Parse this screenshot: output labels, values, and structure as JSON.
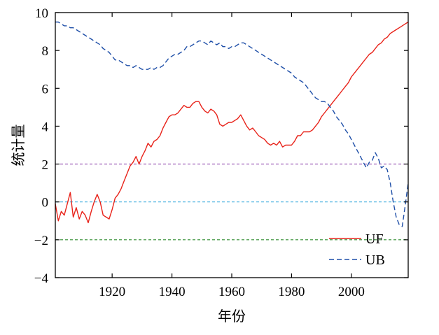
{
  "chart_data": {
    "type": "line",
    "xlabel": "年份",
    "ylabel": "统计量",
    "xlim": [
      1901,
      2019
    ],
    "ylim": [
      -4,
      10
    ],
    "xticks": [
      1920,
      1940,
      1960,
      1980,
      2000
    ],
    "yticks": [
      10,
      8,
      6,
      4,
      2,
      0,
      -2,
      -4
    ],
    "ytick_labels": [
      "10",
      "8",
      "6",
      "4",
      "2",
      "0",
      "−2",
      "−4"
    ],
    "grid": false,
    "legend": "bottom-right",
    "reference_lines": [
      {
        "y": 2,
        "color": "#8e44ad",
        "style": "dashed"
      },
      {
        "y": 0,
        "color": "#4ab3e0",
        "style": "dashed"
      },
      {
        "y": -2,
        "color": "#2e8b2e",
        "style": "dashed"
      }
    ],
    "series": [
      {
        "name": "UF",
        "color": "#e8231a",
        "style": "solid",
        "points": [
          [
            1901,
            -0.1
          ],
          [
            1902,
            -1.0
          ],
          [
            1903,
            -0.5
          ],
          [
            1904,
            -0.7
          ],
          [
            1905,
            -0.1
          ],
          [
            1906,
            0.5
          ],
          [
            1907,
            -0.8
          ],
          [
            1908,
            -0.3
          ],
          [
            1909,
            -0.9
          ],
          [
            1910,
            -0.5
          ],
          [
            1911,
            -0.7
          ],
          [
            1912,
            -1.1
          ],
          [
            1913,
            -0.5
          ],
          [
            1914,
            0.0
          ],
          [
            1915,
            0.4
          ],
          [
            1916,
            0.0
          ],
          [
            1917,
            -0.7
          ],
          [
            1918,
            -0.8
          ],
          [
            1919,
            -0.9
          ],
          [
            1920,
            -0.4
          ],
          [
            1921,
            0.2
          ],
          [
            1922,
            0.4
          ],
          [
            1923,
            0.7
          ],
          [
            1924,
            1.1
          ],
          [
            1925,
            1.5
          ],
          [
            1926,
            1.9
          ],
          [
            1927,
            2.1
          ],
          [
            1928,
            2.4
          ],
          [
            1929,
            2.0
          ],
          [
            1930,
            2.4
          ],
          [
            1931,
            2.7
          ],
          [
            1932,
            3.1
          ],
          [
            1933,
            2.9
          ],
          [
            1934,
            3.2
          ],
          [
            1935,
            3.3
          ],
          [
            1936,
            3.5
          ],
          [
            1937,
            3.9
          ],
          [
            1938,
            4.2
          ],
          [
            1939,
            4.5
          ],
          [
            1940,
            4.6
          ],
          [
            1941,
            4.6
          ],
          [
            1942,
            4.7
          ],
          [
            1943,
            4.9
          ],
          [
            1944,
            5.1
          ],
          [
            1945,
            5.0
          ],
          [
            1946,
            5.0
          ],
          [
            1947,
            5.2
          ],
          [
            1948,
            5.3
          ],
          [
            1949,
            5.3
          ],
          [
            1950,
            5.0
          ],
          [
            1951,
            4.8
          ],
          [
            1952,
            4.7
          ],
          [
            1953,
            4.9
          ],
          [
            1954,
            4.8
          ],
          [
            1955,
            4.6
          ],
          [
            1956,
            4.1
          ],
          [
            1957,
            4.0
          ],
          [
            1958,
            4.1
          ],
          [
            1959,
            4.2
          ],
          [
            1960,
            4.2
          ],
          [
            1961,
            4.3
          ],
          [
            1962,
            4.4
          ],
          [
            1963,
            4.6
          ],
          [
            1964,
            4.3
          ],
          [
            1965,
            4.0
          ],
          [
            1966,
            3.8
          ],
          [
            1967,
            3.9
          ],
          [
            1968,
            3.7
          ],
          [
            1969,
            3.5
          ],
          [
            1970,
            3.4
          ],
          [
            1971,
            3.3
          ],
          [
            1972,
            3.1
          ],
          [
            1973,
            3.0
          ],
          [
            1974,
            3.1
          ],
          [
            1975,
            3.0
          ],
          [
            1976,
            3.2
          ],
          [
            1977,
            2.9
          ],
          [
            1978,
            3.0
          ],
          [
            1979,
            3.0
          ],
          [
            1980,
            3.0
          ],
          [
            1981,
            3.2
          ],
          [
            1982,
            3.5
          ],
          [
            1983,
            3.5
          ],
          [
            1984,
            3.7
          ],
          [
            1985,
            3.7
          ],
          [
            1986,
            3.7
          ],
          [
            1987,
            3.8
          ],
          [
            1988,
            4.0
          ],
          [
            1989,
            4.2
          ],
          [
            1990,
            4.5
          ],
          [
            1991,
            4.7
          ],
          [
            1992,
            4.9
          ],
          [
            1993,
            5.1
          ],
          [
            1994,
            5.3
          ],
          [
            1995,
            5.5
          ],
          [
            1996,
            5.7
          ],
          [
            1997,
            5.9
          ],
          [
            1998,
            6.1
          ],
          [
            1999,
            6.3
          ],
          [
            2000,
            6.6
          ],
          [
            2001,
            6.8
          ],
          [
            2002,
            7.0
          ],
          [
            2003,
            7.2
          ],
          [
            2004,
            7.4
          ],
          [
            2005,
            7.6
          ],
          [
            2006,
            7.8
          ],
          [
            2007,
            7.9
          ],
          [
            2008,
            8.1
          ],
          [
            2009,
            8.3
          ],
          [
            2010,
            8.4
          ],
          [
            2011,
            8.6
          ],
          [
            2012,
            8.7
          ],
          [
            2013,
            8.9
          ],
          [
            2014,
            9.0
          ],
          [
            2015,
            9.1
          ],
          [
            2016,
            9.2
          ],
          [
            2017,
            9.3
          ],
          [
            2018,
            9.4
          ],
          [
            2019,
            9.5
          ]
        ]
      },
      {
        "name": "UB",
        "color": "#1f4fa8",
        "style": "dashed",
        "points": [
          [
            1901,
            9.5
          ],
          [
            1902,
            9.5
          ],
          [
            1903,
            9.4
          ],
          [
            1904,
            9.3
          ],
          [
            1905,
            9.3
          ],
          [
            1906,
            9.2
          ],
          [
            1907,
            9.2
          ],
          [
            1908,
            9.1
          ],
          [
            1909,
            9.0
          ],
          [
            1910,
            8.9
          ],
          [
            1911,
            8.8
          ],
          [
            1912,
            8.7
          ],
          [
            1913,
            8.6
          ],
          [
            1914,
            8.5
          ],
          [
            1915,
            8.4
          ],
          [
            1916,
            8.3
          ],
          [
            1917,
            8.1
          ],
          [
            1918,
            8.0
          ],
          [
            1919,
            7.9
          ],
          [
            1920,
            7.7
          ],
          [
            1921,
            7.5
          ],
          [
            1922,
            7.5
          ],
          [
            1923,
            7.4
          ],
          [
            1924,
            7.3
          ],
          [
            1925,
            7.2
          ],
          [
            1926,
            7.2
          ],
          [
            1927,
            7.1
          ],
          [
            1928,
            7.2
          ],
          [
            1929,
            7.1
          ],
          [
            1930,
            7.0
          ],
          [
            1931,
            7.0
          ],
          [
            1932,
            7.0
          ],
          [
            1933,
            7.1
          ],
          [
            1934,
            7.0
          ],
          [
            1935,
            7.1
          ],
          [
            1936,
            7.1
          ],
          [
            1937,
            7.2
          ],
          [
            1938,
            7.4
          ],
          [
            1939,
            7.6
          ],
          [
            1940,
            7.7
          ],
          [
            1941,
            7.8
          ],
          [
            1942,
            7.8
          ],
          [
            1943,
            7.9
          ],
          [
            1944,
            8.0
          ],
          [
            1945,
            8.2
          ],
          [
            1946,
            8.2
          ],
          [
            1947,
            8.3
          ],
          [
            1948,
            8.4
          ],
          [
            1949,
            8.5
          ],
          [
            1950,
            8.5
          ],
          [
            1951,
            8.4
          ],
          [
            1952,
            8.3
          ],
          [
            1953,
            8.5
          ],
          [
            1954,
            8.4
          ],
          [
            1955,
            8.3
          ],
          [
            1956,
            8.4
          ],
          [
            1957,
            8.2
          ],
          [
            1958,
            8.2
          ],
          [
            1959,
            8.1
          ],
          [
            1960,
            8.2
          ],
          [
            1961,
            8.2
          ],
          [
            1962,
            8.3
          ],
          [
            1963,
            8.4
          ],
          [
            1964,
            8.4
          ],
          [
            1965,
            8.3
          ],
          [
            1966,
            8.2
          ],
          [
            1967,
            8.1
          ],
          [
            1968,
            8.0
          ],
          [
            1969,
            7.9
          ],
          [
            1970,
            7.8
          ],
          [
            1971,
            7.7
          ],
          [
            1972,
            7.6
          ],
          [
            1973,
            7.5
          ],
          [
            1974,
            7.4
          ],
          [
            1975,
            7.3
          ],
          [
            1976,
            7.2
          ],
          [
            1977,
            7.1
          ],
          [
            1978,
            7.0
          ],
          [
            1979,
            6.9
          ],
          [
            1980,
            6.8
          ],
          [
            1981,
            6.6
          ],
          [
            1982,
            6.5
          ],
          [
            1983,
            6.4
          ],
          [
            1984,
            6.3
          ],
          [
            1985,
            6.1
          ],
          [
            1986,
            5.9
          ],
          [
            1987,
            5.7
          ],
          [
            1988,
            5.5
          ],
          [
            1989,
            5.4
          ],
          [
            1990,
            5.3
          ],
          [
            1991,
            5.3
          ],
          [
            1992,
            5.2
          ],
          [
            1993,
            5.0
          ],
          [
            1994,
            4.8
          ],
          [
            1995,
            4.5
          ],
          [
            1996,
            4.3
          ],
          [
            1997,
            4.1
          ],
          [
            1998,
            3.8
          ],
          [
            1999,
            3.6
          ],
          [
            2000,
            3.3
          ],
          [
            2001,
            3.0
          ],
          [
            2002,
            2.7
          ],
          [
            2003,
            2.4
          ],
          [
            2004,
            2.1
          ],
          [
            2005,
            1.8
          ],
          [
            2006,
            2.1
          ],
          [
            2007,
            2.2
          ],
          [
            2008,
            2.6
          ],
          [
            2009,
            2.3
          ],
          [
            2010,
            1.8
          ],
          [
            2011,
            1.9
          ],
          [
            2012,
            1.7
          ],
          [
            2013,
            1.0
          ],
          [
            2014,
            0.0
          ],
          [
            2015,
            -0.8
          ],
          [
            2016,
            -1.2
          ],
          [
            2017,
            -1.3
          ],
          [
            2018,
            -0.2
          ],
          [
            2019,
            1.0
          ]
        ]
      }
    ]
  }
}
